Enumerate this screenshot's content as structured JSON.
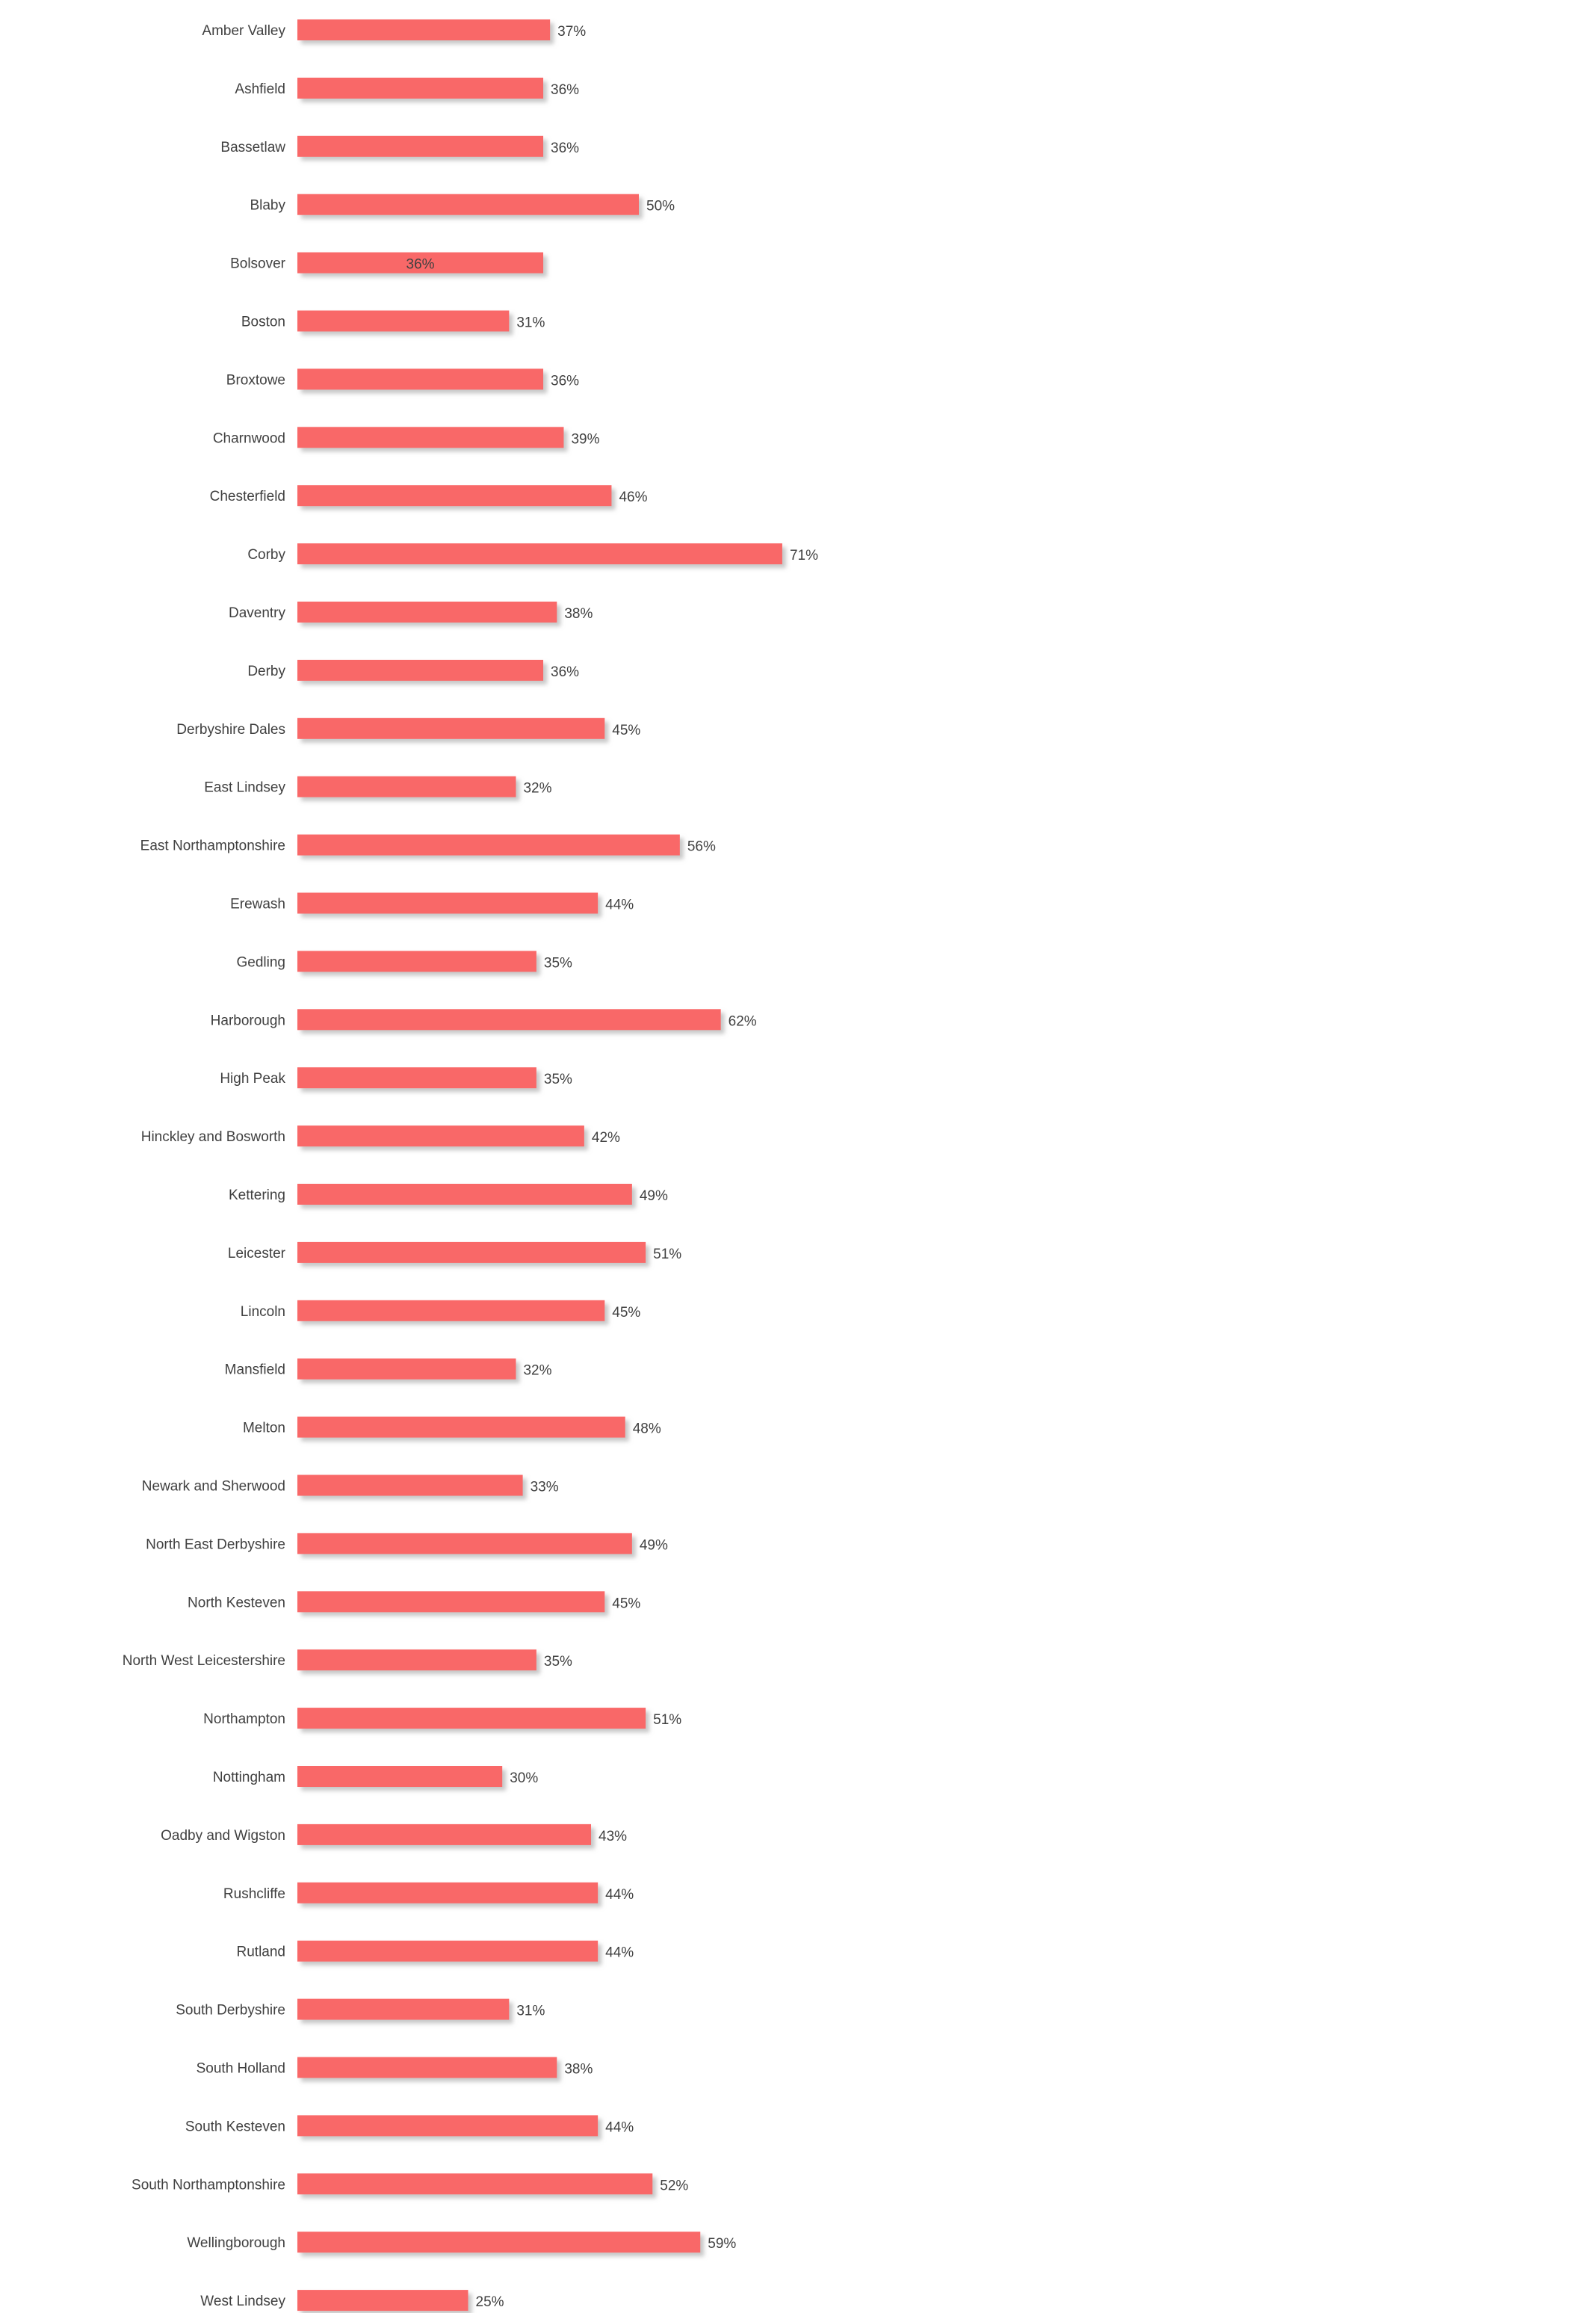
{
  "chart_data": {
    "type": "bar",
    "orientation": "horizontal",
    "title": "",
    "xlabel": "",
    "ylabel": "",
    "xlim": [
      0,
      100
    ],
    "grid": false,
    "legend": "none",
    "bar_color": "#f96868",
    "shadow_color": "#b5b5b5",
    "label_color": "#404040",
    "value_suffix": "%",
    "inside_label_indices": [
      4
    ],
    "categories": [
      "Amber Valley",
      "Ashfield",
      "Bassetlaw",
      "Blaby",
      "Bolsover",
      "Boston",
      "Broxtowe",
      "Charnwood",
      "Chesterfield",
      "Corby",
      "Daventry",
      "Derby",
      "Derbyshire Dales",
      "East Lindsey",
      "East Northamptonshire",
      "Erewash",
      "Gedling",
      "Harborough",
      "High Peak",
      "Hinckley and Bosworth",
      "Kettering",
      "Leicester",
      "Lincoln",
      "Mansfield",
      "Melton",
      "Newark and Sherwood",
      "North East Derbyshire",
      "North Kesteven",
      "North West Leicestershire",
      "Northampton",
      "Nottingham",
      "Oadby and Wigston",
      "Rushcliffe",
      "Rutland",
      "South Derbyshire",
      "South Holland",
      "South Kesteven",
      "South Northamptonshire",
      "Wellingborough",
      "West Lindsey"
    ],
    "values": [
      37,
      36,
      36,
      50,
      36,
      31,
      36,
      39,
      46,
      71,
      38,
      36,
      45,
      32,
      56,
      44,
      35,
      62,
      35,
      42,
      49,
      51,
      45,
      32,
      48,
      33,
      49,
      45,
      35,
      51,
      30,
      43,
      44,
      44,
      31,
      38,
      44,
      52,
      59,
      25
    ],
    "value_labels": [
      "37%",
      "36%",
      "36%",
      "50%",
      "36%",
      "31%",
      "36%",
      "39%",
      "46%",
      "71%",
      "38%",
      "36%",
      "45%",
      "32%",
      "56%",
      "44%",
      "35%",
      "62%",
      "35%",
      "42%",
      "49%",
      "51%",
      "45%",
      "32%",
      "48%",
      "33%",
      "49%",
      "45%",
      "35%",
      "51%",
      "30%",
      "43%",
      "44%",
      "44%",
      "31%",
      "38%",
      "44%",
      "52%",
      "59%",
      "25%"
    ]
  }
}
